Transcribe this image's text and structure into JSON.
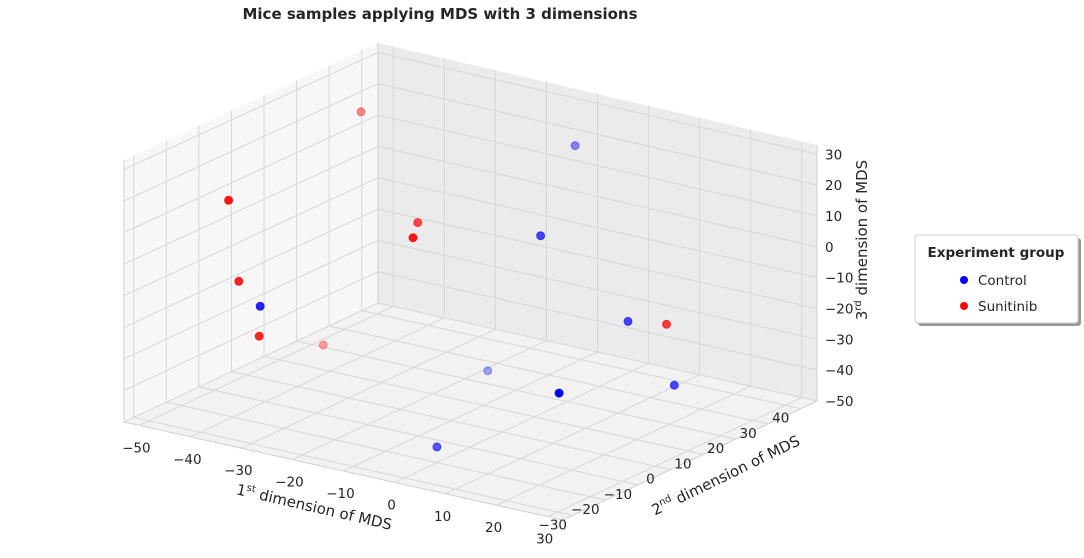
{
  "chart_data": {
    "type": "scatter",
    "title": "Mice samples applying MDS with 3 dimensions",
    "xlabel": {
      "main": "1",
      "sup": "st",
      "rest": " dimension of MDS"
    },
    "ylabel": {
      "main": "2",
      "sup": "nd",
      "rest": " dimension of MDS"
    },
    "zlabel": {
      "main": "3",
      "sup": "rd",
      "rest": " dimension of MDS"
    },
    "xlim": [
      -53,
      33
    ],
    "ylim": [
      -33,
      45
    ],
    "zlim": [
      -50,
      33
    ],
    "x_ticks": [
      "−50",
      "−40",
      "−30",
      "−20",
      "−10",
      "0",
      "10",
      "20",
      "30"
    ],
    "y_ticks": [
      "−30",
      "−20",
      "−10",
      "0",
      "10",
      "20",
      "30",
      "40"
    ],
    "z_ticks": [
      "−50",
      "−40",
      "−30",
      "−20",
      "−10",
      "0",
      "10",
      "20",
      "30"
    ],
    "grid": true,
    "legend": {
      "title": "Experiment group",
      "placement": "right",
      "entries": [
        {
          "label": "Control",
          "color": "#0000ff"
        },
        {
          "label": "Sunitinib",
          "color": "#ff0000"
        }
      ]
    },
    "series": [
      {
        "name": "Control",
        "color": "#0000ff",
        "points": [
          {
            "x": -8,
            "y": 35,
            "z": 22,
            "depth_alpha": 0.45
          },
          {
            "x": -2,
            "y": 15,
            "z": 5,
            "depth_alpha": 0.7
          },
          {
            "x": 10,
            "y": 23,
            "z": -22,
            "depth_alpha": 0.7
          },
          {
            "x": 8,
            "y": 5,
            "z": -37,
            "depth_alpha": 1.0
          },
          {
            "x": 21,
            "y": 20,
            "z": -37,
            "depth_alpha": 0.7
          },
          {
            "x": -6,
            "y": 5,
            "z": -35,
            "depth_alpha": 0.35
          },
          {
            "x": -41,
            "y": -10,
            "z": -20,
            "depth_alpha": 0.85
          },
          {
            "x": 0,
            "y": -20,
            "z": -45,
            "depth_alpha": 0.65
          }
        ]
      },
      {
        "name": "Sunitinib",
        "color": "#ff0000",
        "points": [
          {
            "x": -34,
            "y": 10,
            "z": 35,
            "depth_alpha": 0.45
          },
          {
            "x": -44,
            "y": -15,
            "z": 15,
            "depth_alpha": 0.9
          },
          {
            "x": -28,
            "y": 18,
            "z": -2,
            "depth_alpha": 0.7
          },
          {
            "x": -27,
            "y": 15,
            "z": -5,
            "depth_alpha": 0.9
          },
          {
            "x": -42,
            "y": -15,
            "z": -10,
            "depth_alpha": 0.85
          },
          {
            "x": -38,
            "y": -15,
            "z": -26,
            "depth_alpha": 0.85
          },
          {
            "x": -35,
            "y": 0,
            "z": -35,
            "depth_alpha": 0.35
          },
          {
            "x": 15,
            "y": 27,
            "z": -23,
            "depth_alpha": 0.75
          }
        ]
      }
    ]
  }
}
